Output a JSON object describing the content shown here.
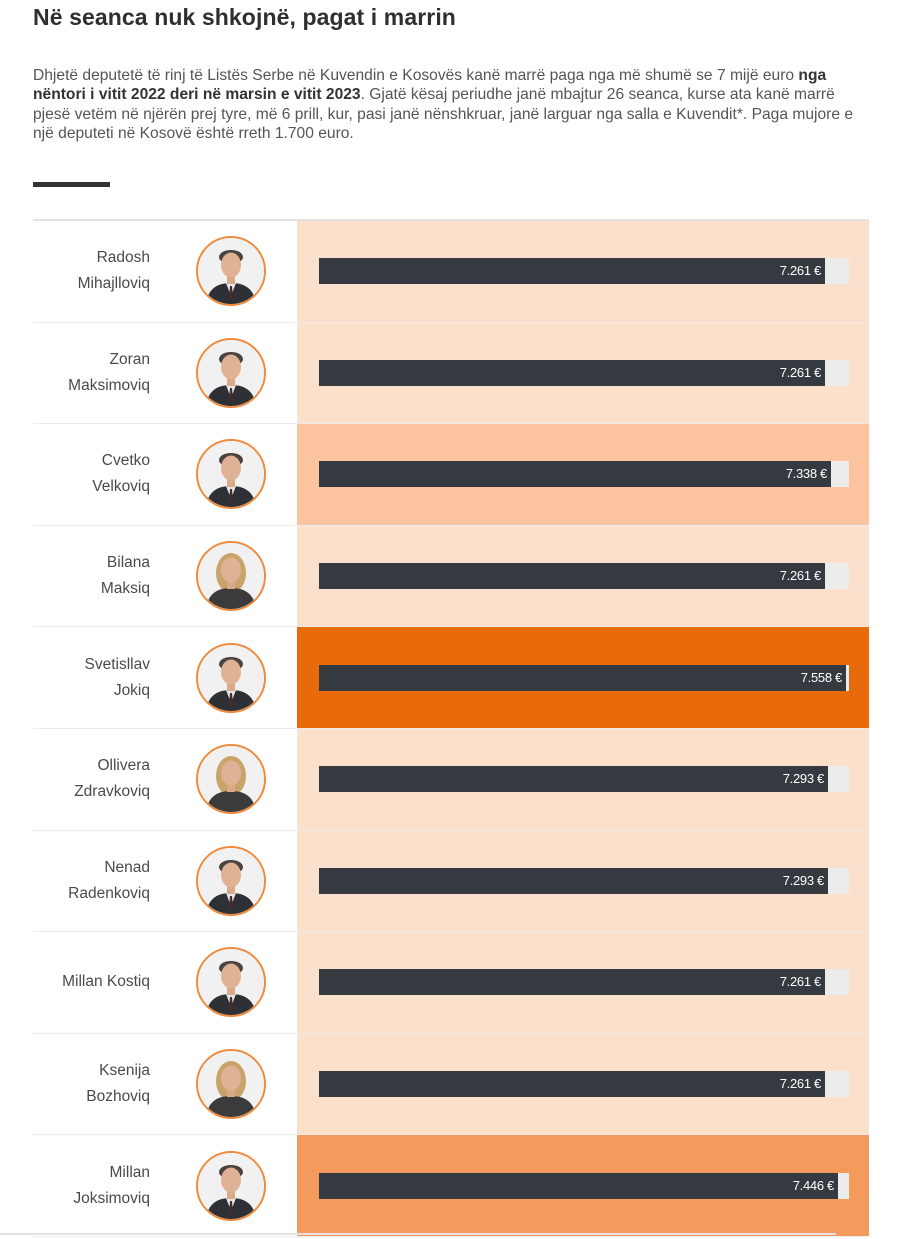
{
  "title": "Në seanca nuk shkojnë, pagat i marrin",
  "intro": {
    "part1": "Dhjetë deputetë të rinj të Listës Serbe në Kuvendin e Kosovës kanë marrë paga nga më shumë se 7 mijë euro ",
    "bold": "nga nëntori i vitit 2022 deri në marsin e vitit 2023",
    "part2": ". Gjatë kësaj periudhe janë mbajtur 26 seanca, kurse ata kanë marrë pjesë vetëm në njërën prej tyre, më 6 prill, kur, pasi janë nënshkruar, janë larguar nga salla e Kuvendit*. Paga mujore e një deputeti në Kosovë është rreth 1.700 euro."
  },
  "colors": {
    "low": "#fbe0cb",
    "mid": "#fbc39e",
    "high": "#f39a5c",
    "max": "#e96a0b",
    "bar": "#353a40",
    "avatar_border": "#f08a3c"
  },
  "chart_data": {
    "type": "bar",
    "orientation": "horizontal",
    "categories": [
      "Radosh Mihajlloviq",
      "Zoran Maksimoviq",
      "Cvetko Velkoviq",
      "Bilana Maksiq",
      "Svetisllav Jokiq",
      "Ollivera Zdravkoviq",
      "Nenad Radenkoviq",
      "Millan Kostiq",
      "Ksenija Bozhoviq",
      "Millan Joksimoviq"
    ],
    "values": [
      7261,
      7261,
      7338,
      7261,
      7558,
      7293,
      7293,
      7261,
      7261,
      7446
    ],
    "rows": [
      {
        "name_lines": [
          "Radosh",
          "Mihajlloviq"
        ],
        "value": 7261,
        "label": "7.261 €",
        "shade": "low",
        "avatar": "male-avatar-icon"
      },
      {
        "name_lines": [
          "Zoran",
          "Maksimoviq"
        ],
        "value": 7261,
        "label": "7.261 €",
        "shade": "low",
        "avatar": "male-avatar-icon"
      },
      {
        "name_lines": [
          "Cvetko",
          "Velkoviq"
        ],
        "value": 7338,
        "label": "7.338 €",
        "shade": "mid",
        "avatar": "male-avatar-icon"
      },
      {
        "name_lines": [
          "Bilana",
          "Maksiq"
        ],
        "value": 7261,
        "label": "7.261 €",
        "shade": "low",
        "avatar": "female-avatar-icon"
      },
      {
        "name_lines": [
          "Svetisllav",
          "Jokiq"
        ],
        "value": 7558,
        "label": "7.558 €",
        "shade": "max",
        "avatar": "male-avatar-icon"
      },
      {
        "name_lines": [
          "Ollivera",
          "Zdravkoviq"
        ],
        "value": 7293,
        "label": "7.293 €",
        "shade": "low",
        "avatar": "female-avatar-icon"
      },
      {
        "name_lines": [
          "Nenad",
          "Radenkoviq"
        ],
        "value": 7293,
        "label": "7.293 €",
        "shade": "low",
        "avatar": "male-avatar-icon"
      },
      {
        "name_lines": [
          "Millan Kostiq"
        ],
        "value": 7261,
        "label": "7.261 €",
        "shade": "low",
        "avatar": "male-avatar-icon"
      },
      {
        "name_lines": [
          "Ksenija",
          "Bozhoviq"
        ],
        "value": 7261,
        "label": "7.261 €",
        "shade": "low",
        "avatar": "female-avatar-icon"
      },
      {
        "name_lines": [
          "Millan",
          "Joksimoviq"
        ],
        "value": 7446,
        "label": "7.446 €",
        "shade": "high",
        "avatar": "male-avatar-icon"
      }
    ],
    "xlim": [
      0,
      7600
    ],
    "title": "Në seanca nuk shkojnë, pagat i marrin",
    "xlabel": "",
    "ylabel": "",
    "grid": false,
    "legend": "none"
  }
}
